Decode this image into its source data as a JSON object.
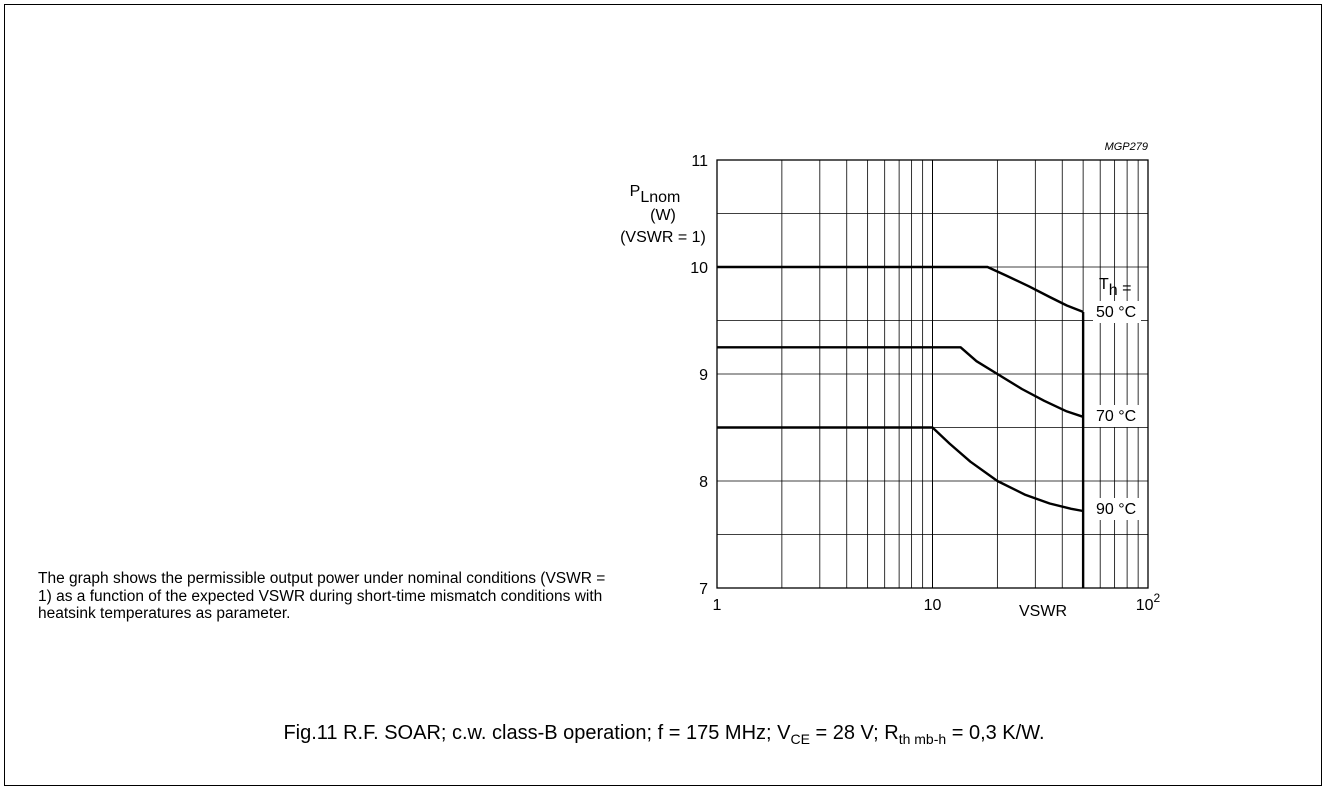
{
  "caption": {
    "prefix": "Fig.11  R.F. SOAR; c.w. class-B operation; f = 175 MHz; V",
    "vce_sub": "CE",
    "middle": " = 28 V; R",
    "rth_sub": "th mb-h",
    "suffix": " = 0,3 K/W."
  },
  "description": "The graph shows the permissible output power under nominal conditions (VSWR = 1) as a function of the expected VSWR during short-time mismatch conditions with heatsink temperatures as parameter.",
  "chart_data": {
    "type": "line",
    "code": "MGP279",
    "ylabel": {
      "main": "P",
      "sub": "Lnom",
      "unit": "(W)",
      "condition": "(VSWR = 1)"
    },
    "xlabel": "VSWR",
    "xscale": "log",
    "xlim": [
      1,
      100
    ],
    "ylim": [
      7,
      11
    ],
    "x_tick_labels": [
      {
        "value": 1,
        "base": "1",
        "exp": ""
      },
      {
        "value": 10,
        "base": "10",
        "exp": ""
      },
      {
        "value": 100,
        "base": "10",
        "exp": "2"
      }
    ],
    "y_ticks": [
      7,
      8,
      9,
      10,
      11
    ],
    "grid": true,
    "legend_title": {
      "main": "T",
      "sub": "h",
      "suffix": " ="
    },
    "vswr_limit": 50,
    "series": [
      {
        "name": "50 °C",
        "x": [
          1,
          18,
          22,
          28,
          35,
          42,
          50
        ],
        "y": [
          10,
          10,
          9.92,
          9.82,
          9.72,
          9.64,
          9.58
        ]
      },
      {
        "name": "70 °C",
        "x": [
          1,
          13.5,
          16,
          20,
          26,
          33,
          42,
          50
        ],
        "y": [
          9.25,
          9.25,
          9.12,
          9.0,
          8.86,
          8.75,
          8.65,
          8.6
        ]
      },
      {
        "name": "90 °C",
        "x": [
          1,
          10,
          12,
          15,
          20,
          27,
          35,
          44,
          50
        ],
        "y": [
          8.5,
          8.5,
          8.35,
          8.18,
          8.0,
          7.87,
          7.79,
          7.74,
          7.72
        ]
      }
    ]
  }
}
